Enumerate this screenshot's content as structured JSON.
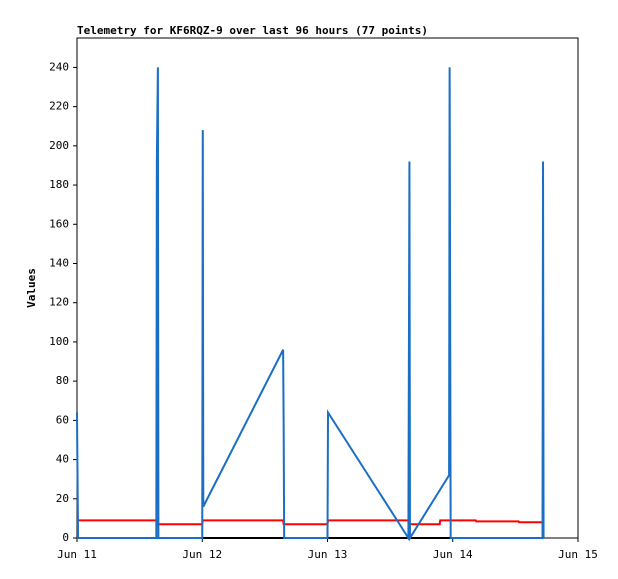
{
  "chart_data": {
    "type": "line",
    "title": "Telemetry for KF6RQZ-9 over last 96 hours (77 points)",
    "y_label": "Values",
    "xlim": [
      0,
      96
    ],
    "xticks": [
      {
        "value": 0,
        "label": "Jun 11"
      },
      {
        "value": 24,
        "label": "Jun 12"
      },
      {
        "value": 48,
        "label": "Jun 13"
      },
      {
        "value": 72,
        "label": "Jun 14"
      },
      {
        "value": 96,
        "label": "Jun 15"
      }
    ],
    "ylim": [
      0,
      255
    ],
    "yticks": [
      0,
      20,
      40,
      60,
      80,
      100,
      120,
      140,
      160,
      180,
      200,
      220,
      240
    ],
    "series": [
      {
        "color": "#000000",
        "x": [
          0,
          89.4
        ],
        "values": [
          0,
          0
        ]
      },
      {
        "color": "#ff0000",
        "x": [
          0,
          15.2,
          15.3,
          24.0,
          24.1,
          39.5,
          39.6,
          48.0,
          48.1,
          63.5,
          63.6,
          69.5,
          69.6,
          76.4,
          76.5,
          84.6,
          84.7,
          89.4
        ],
        "values": [
          9,
          9,
          7,
          7,
          9,
          9,
          7,
          7,
          9,
          9,
          7,
          7,
          9,
          9,
          8.5,
          8.5,
          8,
          8
        ]
      },
      {
        "color": "#1a6fc4",
        "x": [
          0,
          0.1,
          0.2,
          15.2,
          15.3,
          15.5,
          15.6,
          24.0,
          24.1,
          24.2,
          39.5,
          39.6,
          39.7,
          48.0,
          48.1,
          63.5,
          63.6,
          63.7,
          63.8,
          71.3,
          71.4,
          71.5,
          71.6,
          89.2,
          89.3,
          89.4
        ],
        "values": [
          64,
          32,
          0,
          0,
          192,
          240,
          0,
          0,
          208,
          16,
          96,
          56,
          0,
          0,
          64,
          0,
          96,
          192,
          0,
          32,
          240,
          120,
          0,
          0,
          192,
          0
        ]
      }
    ]
  }
}
